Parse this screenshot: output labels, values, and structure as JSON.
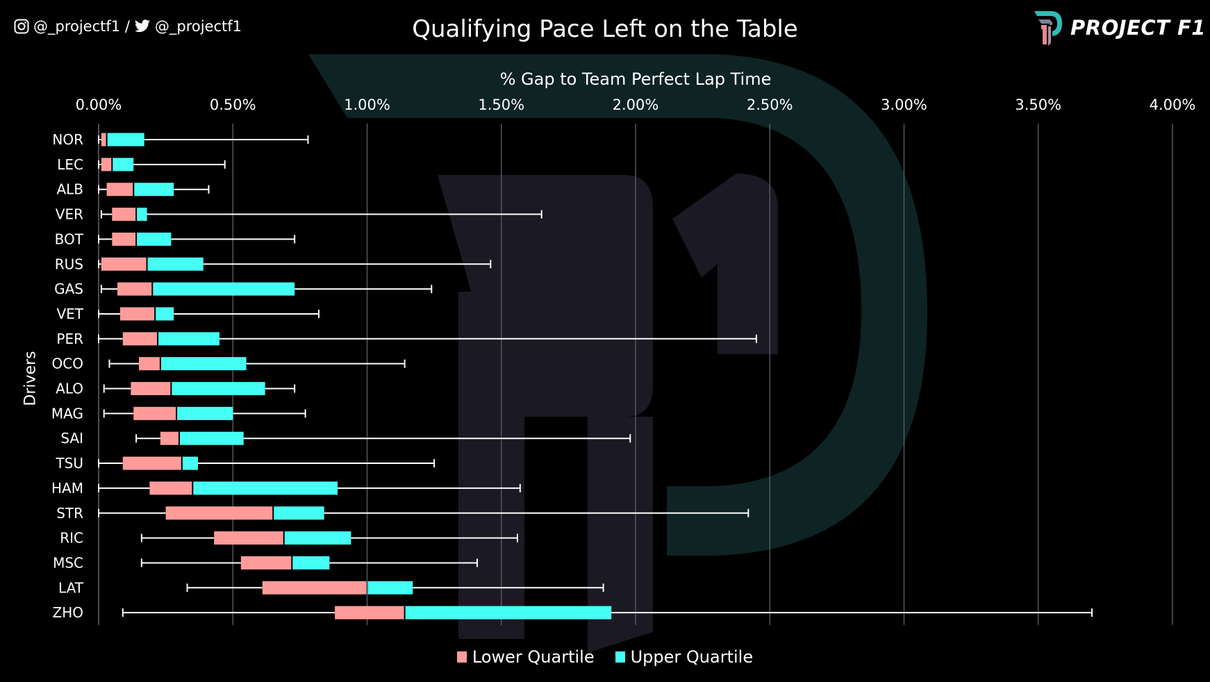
{
  "header": {
    "social_instagram": "@_projectf1 /",
    "social_twitter": "@_projectf1",
    "logo_text": "PROJECT F1"
  },
  "colors": {
    "background": "#000000",
    "lower": "#ff9c9a",
    "upper": "#45fff4",
    "whisker": "#ffffff",
    "grid": "#5b6270"
  },
  "chart_data": {
    "type": "boxplot-horizontal",
    "title": "Qualifying Pace Left on the Table",
    "xlabel": "% Gap to Team Perfect Lap Time",
    "ylabel": "Drivers",
    "xlim": [
      0,
      4
    ],
    "x_axis_position": "top",
    "xticks": [
      "0.00%",
      "0.50%",
      "1.00%",
      "1.50%",
      "2.00%",
      "2.50%",
      "3.00%",
      "3.50%",
      "4.00%"
    ],
    "grid": "vertical",
    "legend": {
      "position": "bottom",
      "entries": [
        "Lower Quartile",
        "Upper Quartile"
      ]
    },
    "categories": [
      "NOR",
      "LEC",
      "ALB",
      "VER",
      "BOT",
      "RUS",
      "GAS",
      "VET",
      "PER",
      "OCO",
      "ALO",
      "MAG",
      "SAI",
      "TSU",
      "HAM",
      "STR",
      "RIC",
      "MSC",
      "LAT",
      "ZHO"
    ],
    "min": [
      0.0,
      0.0,
      0.0,
      0.01,
      0.0,
      0.0,
      0.01,
      0.0,
      0.0,
      0.04,
      0.02,
      0.02,
      0.14,
      0.0,
      0.0,
      0.0,
      0.16,
      0.16,
      0.33,
      0.09
    ],
    "q1": [
      0.01,
      0.01,
      0.03,
      0.05,
      0.05,
      0.01,
      0.07,
      0.08,
      0.09,
      0.15,
      0.12,
      0.13,
      0.23,
      0.09,
      0.19,
      0.25,
      0.43,
      0.53,
      0.61,
      0.88
    ],
    "median": [
      0.03,
      0.05,
      0.13,
      0.14,
      0.14,
      0.18,
      0.2,
      0.21,
      0.22,
      0.23,
      0.27,
      0.29,
      0.3,
      0.31,
      0.35,
      0.65,
      0.69,
      0.72,
      1.0,
      1.14
    ],
    "q3": [
      0.17,
      0.13,
      0.28,
      0.18,
      0.27,
      0.39,
      0.73,
      0.28,
      0.45,
      0.55,
      0.62,
      0.5,
      0.54,
      0.37,
      0.89,
      0.84,
      0.94,
      0.86,
      1.17,
      1.91
    ],
    "max": [
      0.78,
      0.47,
      0.41,
      1.65,
      0.73,
      1.46,
      1.24,
      0.82,
      2.45,
      1.14,
      0.73,
      0.77,
      1.98,
      1.25,
      1.57,
      2.42,
      1.56,
      1.41,
      1.88,
      3.7
    ]
  }
}
